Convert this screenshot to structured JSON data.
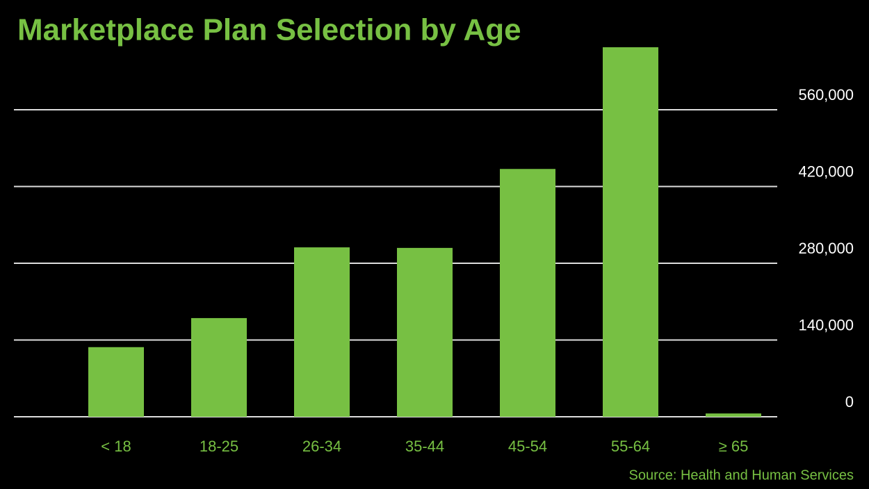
{
  "chart_data": {
    "type": "bar",
    "title": "Marketplace Plan Selection by Age",
    "source": "Source: Health and Human Services",
    "categories": [
      "< 18",
      "18-25",
      "26-34",
      "35-44",
      "45-54",
      "55-64",
      "≥ 65"
    ],
    "values": [
      127000,
      180000,
      309000,
      308000,
      452000,
      674000,
      6000
    ],
    "color": "#77c043",
    "ylim": [
      0,
      700000
    ],
    "yticks": [
      0,
      {
        "value": 140000,
        "label": "140,000"
      },
      {
        "value": 280000,
        "label": "280,000"
      },
      {
        "value": 420000,
        "label": "420,000"
      },
      {
        "value": 560000,
        "label": "560,000"
      }
    ],
    "grid": true
  }
}
